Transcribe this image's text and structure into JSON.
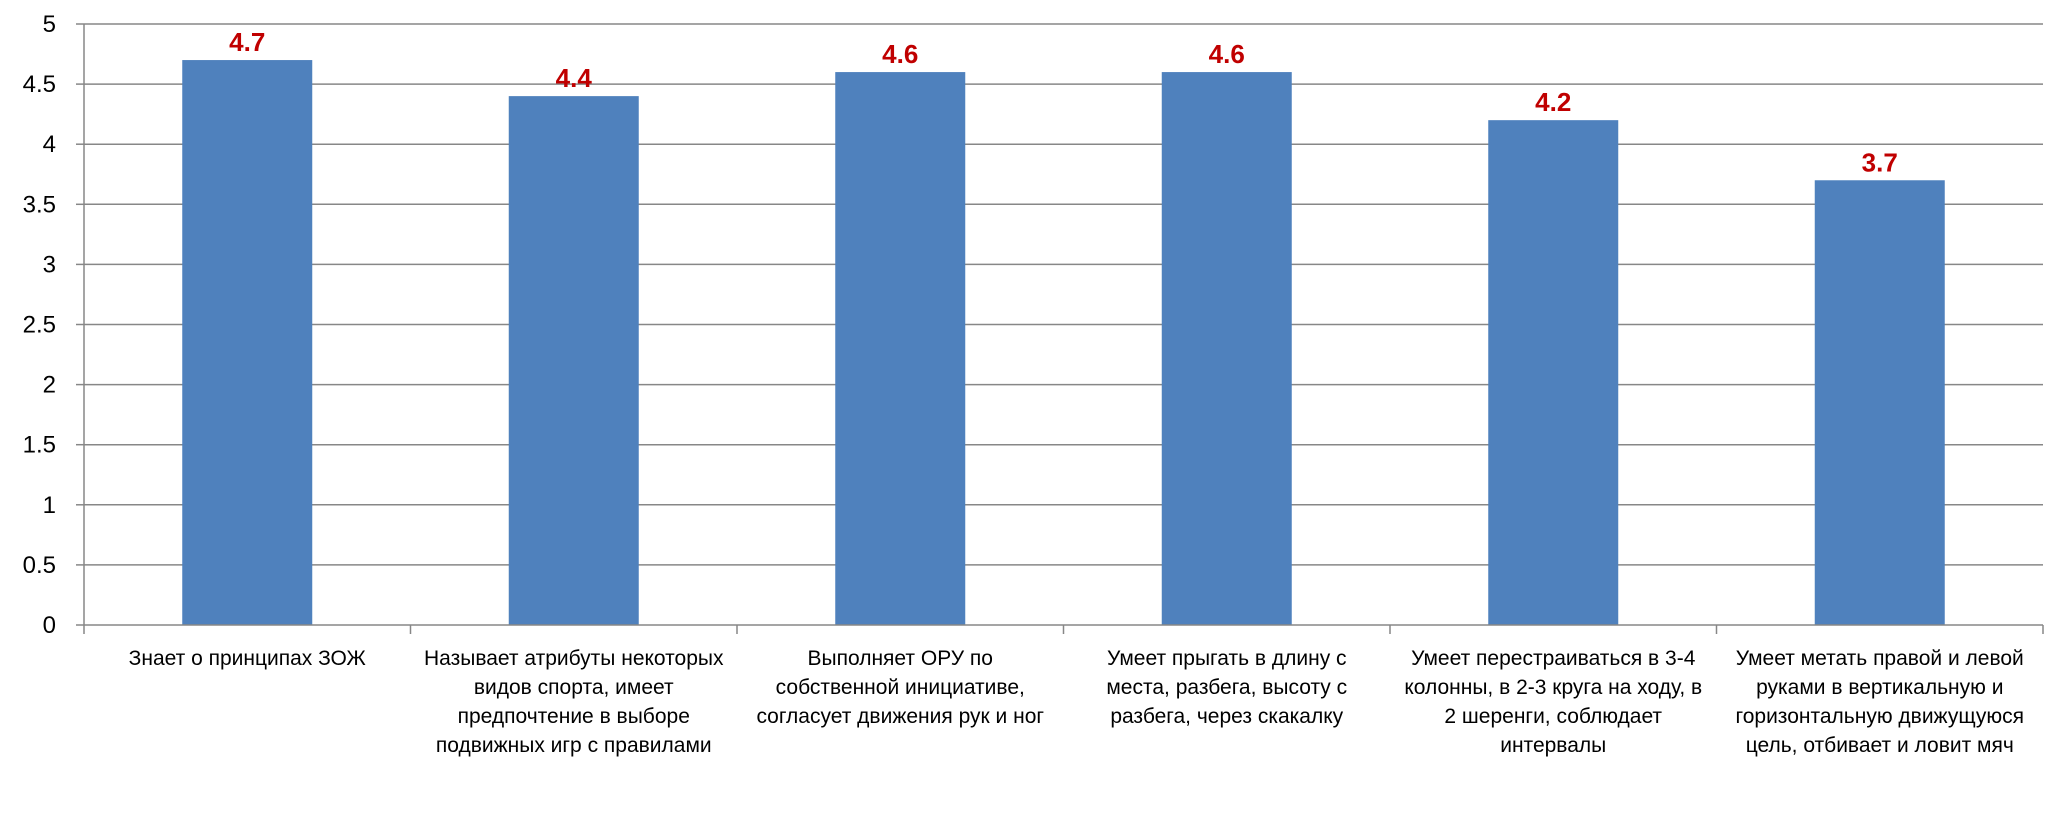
{
  "chart_data": {
    "type": "bar",
    "categories": [
      "Знает о принципах ЗОЖ",
      "Называет атрибуты некоторых видов спорта, имеет предпочтение в выборе подвижных игр с правилами",
      "Выполняет ОРУ по собственной инициативе, согласует движения рук и ног",
      "Умеет прыгать в длину с места, разбега, высоту с разбега, через скакалку",
      "Умеет перестраиваться в 3-4 колонны, в 2-3 круга на ходу, в 2 шеренги, соблюдает интервалы",
      "Умеет метать правой и левой руками в вертикальную и горизонтальную движущуюся цель, отбивает и ловит мяч"
    ],
    "values": [
      4.7,
      4.4,
      4.6,
      4.6,
      4.2,
      3.7
    ],
    "data_labels": [
      "4.7",
      "4.4",
      "4.6",
      "4.6",
      "4.2",
      "3.7"
    ],
    "y_ticks": [
      "0",
      "0.5",
      "1",
      "1.5",
      "2",
      "2.5",
      "3",
      "3.5",
      "4",
      "4.5",
      "5"
    ],
    "ylim": [
      0,
      5
    ],
    "grid": true,
    "legend": "none",
    "colors": {
      "bar": "#4F81BD",
      "data_label": "#C00000",
      "grid": "#878787",
      "text": "#000000"
    }
  }
}
